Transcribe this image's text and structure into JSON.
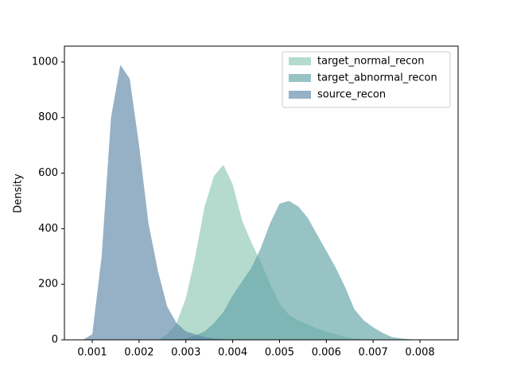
{
  "chart_data": {
    "type": "area",
    "ylabel": "Density",
    "x": [
      0.0008,
      0.001,
      0.0012,
      0.0014,
      0.0016,
      0.0018,
      0.002,
      0.0022,
      0.0024,
      0.0026,
      0.0028,
      0.003,
      0.0032,
      0.0034,
      0.0036,
      0.0038,
      0.004,
      0.0042,
      0.0044,
      0.0046,
      0.0048,
      0.005,
      0.0052,
      0.0054,
      0.0056,
      0.0058,
      0.006,
      0.0062,
      0.0064,
      0.0066,
      0.0068,
      0.007,
      0.0072,
      0.0074,
      0.0076,
      0.0078,
      0.008,
      0.0082,
      0.0084
    ],
    "series": [
      {
        "name": "target_normal_recon",
        "color": "#8cc8b2",
        "values": [
          0,
          0,
          0,
          0,
          0,
          0,
          0,
          0,
          0,
          20,
          60,
          150,
          300,
          480,
          590,
          630,
          560,
          430,
          350,
          280,
          200,
          130,
          90,
          70,
          55,
          40,
          30,
          20,
          10,
          5,
          2,
          0,
          0,
          0,
          0,
          0,
          0,
          0,
          0
        ]
      },
      {
        "name": "target_abnormal_recon",
        "color": "#5fa3a6",
        "values": [
          0,
          0,
          0,
          0,
          0,
          0,
          0,
          0,
          0,
          0,
          2,
          5,
          15,
          30,
          60,
          100,
          160,
          210,
          260,
          330,
          420,
          490,
          500,
          480,
          440,
          380,
          320,
          260,
          190,
          110,
          70,
          45,
          25,
          10,
          5,
          2,
          0,
          0,
          0
        ]
      },
      {
        "name": "source_recon",
        "color": "#5d87a8",
        "values": [
          0,
          20,
          300,
          800,
          990,
          940,
          700,
          420,
          250,
          120,
          60,
          30,
          20,
          10,
          5,
          2,
          0,
          0,
          0,
          0,
          0,
          0,
          0,
          0,
          0,
          0,
          0,
          0,
          0,
          0,
          0,
          0,
          0,
          0,
          0,
          0,
          0,
          0,
          0
        ]
      }
    ],
    "xlim": [
      0.000405,
      0.008815
    ],
    "ylim": [
      0,
      1057
    ],
    "xticks": [
      0.001,
      0.002,
      0.003,
      0.004,
      0.005,
      0.006,
      0.007,
      0.008
    ],
    "yticks": [
      0,
      200,
      400,
      600,
      800,
      1000
    ],
    "legend": "upper right",
    "grid": false
  }
}
